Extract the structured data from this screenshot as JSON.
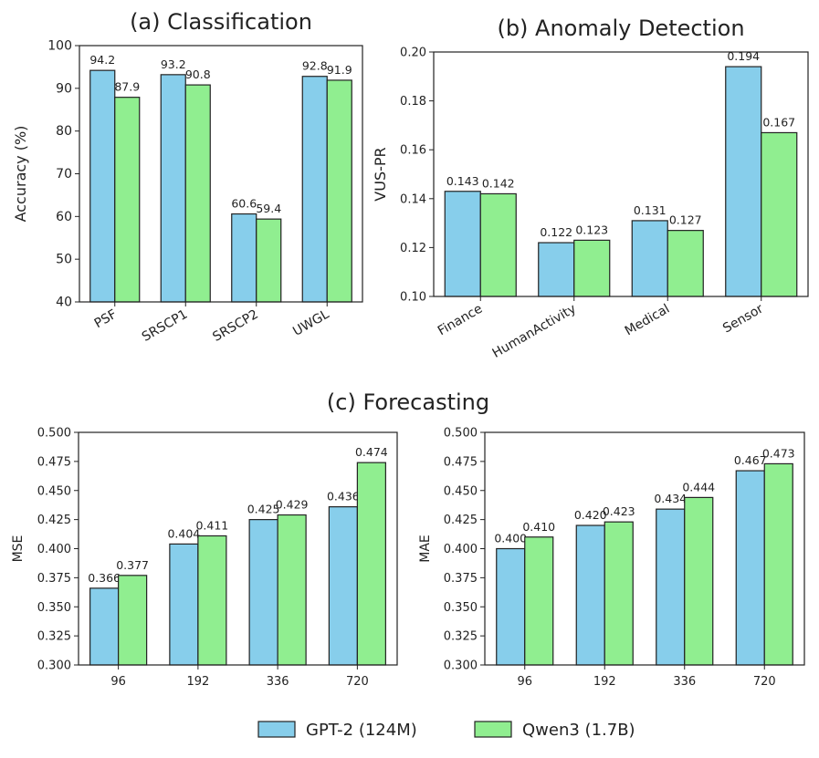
{
  "colors": {
    "gpt2": "#87CEEB",
    "qwen3": "#90EE90",
    "edge": "#222222"
  },
  "section_title": "(c) Forecasting",
  "legend": [
    {
      "label": "GPT-2 (124M)",
      "color": "#87CEEB"
    },
    {
      "label": "Qwen3 (1.7B)",
      "color": "#90EE90"
    }
  ],
  "chart_data": [
    {
      "id": "cls",
      "type": "bar",
      "title": "(a) Classification",
      "xlabel": "",
      "ylabel": "Accuracy (%)",
      "ylim": [
        40,
        100
      ],
      "yticks": [
        "40",
        "50",
        "60",
        "70",
        "80",
        "90",
        "100"
      ],
      "categories": [
        "PSF",
        "SRSCP1",
        "SRSCP2",
        "UWGL"
      ],
      "series": [
        {
          "name": "GPT-2 (124M)",
          "values": [
            94.2,
            93.2,
            60.6,
            92.8
          ],
          "labels": [
            "94.2",
            "93.2",
            "60.6",
            "92.8"
          ]
        },
        {
          "name": "Qwen3 (1.7B)",
          "values": [
            87.9,
            90.8,
            59.4,
            91.9
          ],
          "labels": [
            "87.9",
            "90.8",
            "59.4",
            "91.9"
          ]
        }
      ]
    },
    {
      "id": "ad",
      "type": "bar",
      "title": "(b) Anomaly Detection",
      "xlabel": "",
      "ylabel": "VUS-PR",
      "ylim": [
        0.1,
        0.2
      ],
      "yticks": [
        "0.10",
        "0.12",
        "0.14",
        "0.16",
        "0.18",
        "0.20"
      ],
      "categories": [
        "Finance",
        "HumanActivity",
        "Medical",
        "Sensor"
      ],
      "series": [
        {
          "name": "GPT-2 (124M)",
          "values": [
            0.143,
            0.122,
            0.131,
            0.194
          ],
          "labels": [
            "0.143",
            "0.122",
            "0.131",
            "0.194"
          ]
        },
        {
          "name": "Qwen3 (1.7B)",
          "values": [
            0.142,
            0.123,
            0.127,
            0.167
          ],
          "labels": [
            "0.142",
            "0.123",
            "0.127",
            "0.167"
          ]
        }
      ]
    },
    {
      "id": "mse",
      "type": "bar",
      "title": "",
      "xlabel": "",
      "ylabel": "MSE",
      "ylim": [
        0.3,
        0.5
      ],
      "yticks": [
        "0.300",
        "0.325",
        "0.350",
        "0.375",
        "0.400",
        "0.425",
        "0.450",
        "0.475",
        "0.500"
      ],
      "categories": [
        "96",
        "192",
        "336",
        "720"
      ],
      "series": [
        {
          "name": "GPT-2 (124M)",
          "values": [
            0.366,
            0.404,
            0.425,
            0.436
          ],
          "labels": [
            "0.366",
            "0.404",
            "0.425",
            "0.436"
          ]
        },
        {
          "name": "Qwen3 (1.7B)",
          "values": [
            0.377,
            0.411,
            0.429,
            0.474
          ],
          "labels": [
            "0.377",
            "0.411",
            "0.429",
            "0.474"
          ]
        }
      ]
    },
    {
      "id": "mae",
      "type": "bar",
      "title": "",
      "xlabel": "",
      "ylabel": "MAE",
      "ylim": [
        0.3,
        0.5
      ],
      "yticks": [
        "0.300",
        "0.325",
        "0.350",
        "0.375",
        "0.400",
        "0.425",
        "0.450",
        "0.475",
        "0.500"
      ],
      "categories": [
        "96",
        "192",
        "336",
        "720"
      ],
      "series": [
        {
          "name": "GPT-2 (124M)",
          "values": [
            0.4,
            0.42,
            0.434,
            0.467
          ],
          "labels": [
            "0.400",
            "0.420",
            "0.434",
            "0.467"
          ]
        },
        {
          "name": "Qwen3 (1.7B)",
          "values": [
            0.41,
            0.423,
            0.444,
            0.473
          ],
          "labels": [
            "0.410",
            "0.423",
            "0.444",
            "0.473"
          ]
        }
      ]
    }
  ]
}
